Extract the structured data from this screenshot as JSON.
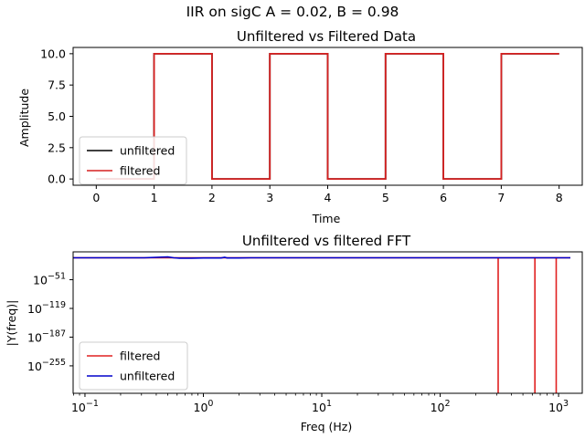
{
  "figure": {
    "suptitle": "IIR on sigC  A = 0.02, B = 0.98"
  },
  "chart_data": [
    {
      "type": "line",
      "title": "Unfiltered vs Filtered Data",
      "xlabel": "Time",
      "ylabel": "Amplitude",
      "xlim": [
        -0.4,
        8.4
      ],
      "ylim": [
        -0.5,
        10.5
      ],
      "xticks": [
        0,
        1,
        2,
        3,
        4,
        5,
        6,
        7,
        8
      ],
      "xtick_labels": [
        "0",
        "1",
        "2",
        "3",
        "4",
        "5",
        "6",
        "7",
        "8"
      ],
      "yticks": [
        0,
        2.5,
        5,
        7.5,
        10
      ],
      "ytick_labels": [
        "0.0",
        "2.5",
        "5.0",
        "7.5",
        "10.0"
      ],
      "grid": false,
      "legend_position": "lower-left",
      "series": [
        {
          "name": "unfiltered",
          "color": "#000000",
          "x": [
            0,
            1,
            1,
            2,
            2,
            3,
            3,
            4,
            4,
            5,
            5,
            6,
            6,
            7,
            7,
            8
          ],
          "y": [
            0,
            0,
            10,
            10,
            0,
            0,
            10,
            10,
            0,
            0,
            10,
            10,
            0,
            0,
            10,
            10
          ]
        },
        {
          "name": "filtered",
          "color": "#d62020",
          "x": [
            0,
            1,
            1,
            2,
            2,
            3,
            3,
            4,
            4,
            5,
            5,
            6,
            6,
            7,
            7,
            8
          ],
          "y": [
            0,
            0,
            10,
            10,
            0,
            0,
            10,
            10,
            0,
            0,
            10,
            10,
            0,
            0,
            10,
            10
          ]
        }
      ]
    },
    {
      "type": "line",
      "title": "Unfiltered vs filtered FFT",
      "xlabel": "Freq (Hz)",
      "ylabel": "|Y(freq)|",
      "xscale": "log",
      "yscale": "log",
      "xlim_log10": [
        -1.1,
        3.2
      ],
      "ylim_log10": [
        -320,
        15
      ],
      "xticks_log10": [
        -1,
        0,
        1,
        2,
        3
      ],
      "xtick_labels": [
        {
          "base": "10",
          "exp": "−1"
        },
        {
          "base": "10",
          "exp": "0"
        },
        {
          "base": "10",
          "exp": "1"
        },
        {
          "base": "10",
          "exp": "2"
        },
        {
          "base": "10",
          "exp": "3"
        }
      ],
      "yticks_log10": [
        -51,
        -119,
        -187,
        -255
      ],
      "ytick_labels": [
        {
          "base": "10",
          "exp": "−51"
        },
        {
          "base": "10",
          "exp": "−119"
        },
        {
          "base": "10",
          "exp": "−187"
        },
        {
          "base": "10",
          "exp": "−255"
        }
      ],
      "grid": false,
      "legend_position": "lower-left",
      "series": [
        {
          "name": "filtered",
          "color": "#e02020",
          "x_log10": [
            -1.1,
            2.49,
            2.49,
            2.49,
            2.515,
            2.515,
            2.8,
            2.8,
            2.8,
            2.82,
            2.82,
            2.98,
            2.98,
            2.98,
            2.99,
            2.99,
            3.1
          ],
          "y_log10": [
            1,
            1,
            -320,
            1,
            1,
            1,
            1,
            -320,
            1,
            1,
            1,
            1,
            -320,
            1,
            1,
            1,
            1
          ]
        },
        {
          "name": "unfiltered",
          "color": "#0000cc",
          "x_log10": [
            -1.1,
            -0.5,
            -0.3,
            -0.25,
            -0.2,
            -0.1,
            0,
            0.15,
            0.18,
            0.2,
            0.3,
            0.4,
            0.5,
            1.0,
            1.5,
            2.0,
            2.5,
            3.0,
            3.1
          ],
          "y_log10": [
            1,
            1,
            3,
            1,
            0,
            0,
            0.5,
            0.5,
            2,
            0.5,
            0.5,
            1,
            1,
            1,
            1,
            1,
            1,
            1,
            1
          ]
        }
      ]
    }
  ]
}
